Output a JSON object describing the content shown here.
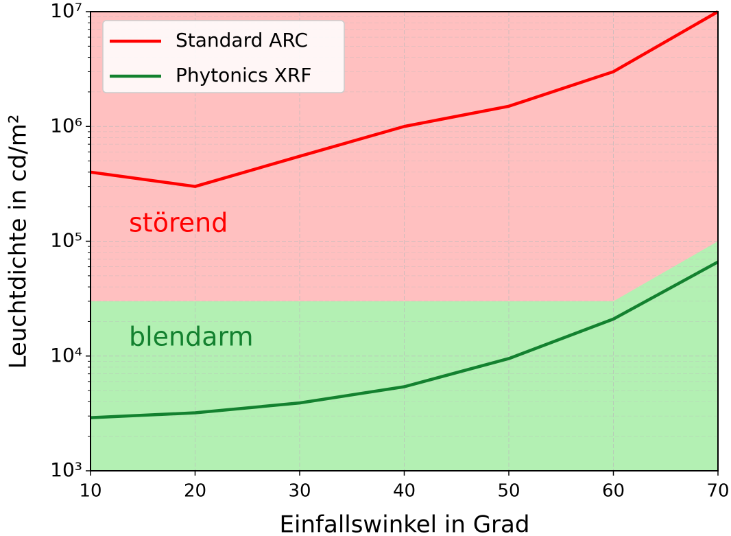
{
  "chart_data": {
    "type": "line",
    "x_label": "Einfallswinkel in Grad",
    "y_label": "Leuchtdichte in cd/m²",
    "x": [
      10,
      20,
      30,
      40,
      50,
      60,
      70
    ],
    "series": [
      {
        "name": "Standard ARC",
        "color": "#ff0000",
        "values": [
          400000,
          300000,
          550000,
          1000000,
          1500000,
          3000000,
          10000000
        ]
      },
      {
        "name": "Phytonics XRF",
        "color": "#13812f",
        "values": [
          2900,
          3200,
          3900,
          5400,
          9500,
          21000,
          66000
        ]
      }
    ],
    "boundary": {
      "x": [
        10,
        60,
        70
      ],
      "values": [
        30000,
        30000,
        100000
      ]
    },
    "regions": [
      {
        "label": "störend",
        "color": "#ffc0c0",
        "text_color": "#ff0000"
      },
      {
        "label": "blendarm",
        "color": "#b3f0b3",
        "text_color": "#13812f"
      }
    ],
    "xlim": [
      10,
      70
    ],
    "xticks": [
      10,
      20,
      30,
      40,
      50,
      60,
      70
    ],
    "ylim": [
      1000,
      10000000
    ],
    "yticks": [
      {
        "value": 1000,
        "label": "10³"
      },
      {
        "value": 10000,
        "label": "10⁴"
      },
      {
        "value": 100000,
        "label": "10⁵"
      },
      {
        "value": 1000000,
        "label": "10⁶"
      },
      {
        "value": 10000000,
        "label": "10⁷"
      }
    ],
    "log_y": true,
    "grid": true,
    "legend": "upper left"
  }
}
